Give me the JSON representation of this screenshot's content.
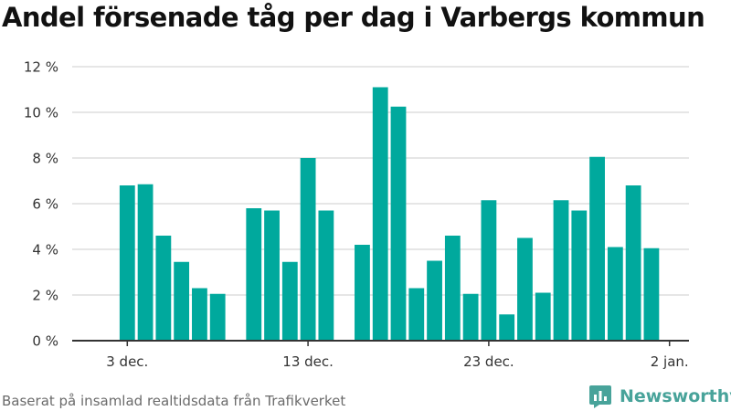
{
  "title": "Andel försenade tåg per dag i Varbergs kommun",
  "source": "Baserat på insamlad realtidsdata från Trafikverket",
  "brand": {
    "name": "Newsworthy",
    "color": "#48a39a"
  },
  "colors": {
    "bar": "#00a99d",
    "grid": "#dddddd",
    "axis": "#333333",
    "text": "#333333"
  },
  "chart_data": {
    "type": "bar",
    "title": "Andel försenade tåg per dag i Varbergs kommun",
    "xlabel": "",
    "ylabel": "",
    "ylim": [
      0,
      12
    ],
    "yticks": [
      "0 %",
      "2 %",
      "4 %",
      "6 %",
      "8 %",
      "10 %",
      "12 %"
    ],
    "xticks": [
      "3 dec.",
      "13 dec.",
      "23 dec.",
      "2 jan."
    ],
    "grid": true,
    "categories": [
      "3 dec.",
      "4 dec.",
      "5 dec.",
      "6 dec.",
      "7 dec.",
      "8 dec.",
      "9 dec.",
      "10 dec.",
      "11 dec.",
      "12 dec.",
      "13 dec.",
      "14 dec.",
      "15 dec.",
      "16 dec.",
      "17 dec.",
      "18 dec.",
      "19 dec.",
      "20 dec.",
      "21 dec.",
      "22 dec.",
      "23 dec.",
      "24 dec.",
      "25 dec.",
      "26 dec.",
      "27 dec.",
      "28 dec.",
      "29 dec.",
      "30 dec.",
      "31 dec.",
      "1 jan."
    ],
    "values": [
      6.8,
      6.85,
      4.6,
      3.45,
      2.3,
      2.05,
      null,
      5.8,
      5.7,
      3.45,
      8.0,
      5.7,
      null,
      4.2,
      11.1,
      10.25,
      2.3,
      3.5,
      4.6,
      2.05,
      6.15,
      1.15,
      4.5,
      2.1,
      6.15,
      5.7,
      8.05,
      4.1,
      6.8,
      4.05
    ]
  }
}
